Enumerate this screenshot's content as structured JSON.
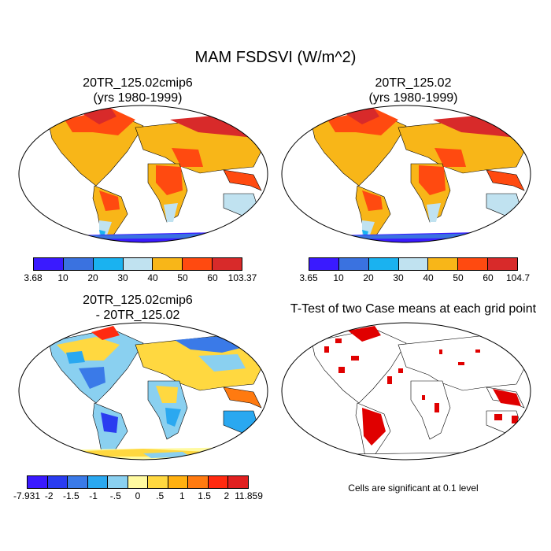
{
  "main_title": "MAM FSDSVI (W/m^2)",
  "panels": [
    {
      "title_line1": "20TR_125.02cmip6",
      "title_line2": "(yrs 1980-1999)"
    },
    {
      "title_line1": "20TR_125.02",
      "title_line2": "(yrs 1980-1999)"
    },
    {
      "title_line1": "20TR_125.02cmip6",
      "title_line2": "- 20TR_125.02"
    },
    {
      "title_line1": "T-Test of two Case means at each grid point",
      "title_line2": ""
    }
  ],
  "colorbar1": {
    "colors": [
      "#3a1aff",
      "#3a72e0",
      "#1ab2f0",
      "#c0e2f0",
      "#f8b618",
      "#ff4a10",
      "#d82a2a"
    ],
    "labels": [
      "3.68",
      "10",
      "20",
      "30",
      "40",
      "50",
      "60",
      "103.37"
    ]
  },
  "colorbar2": {
    "colors": [
      "#3a1aff",
      "#3a72e0",
      "#1ab2f0",
      "#c0e2f0",
      "#f8b618",
      "#ff4a10",
      "#d82a2a"
    ],
    "labels": [
      "3.65",
      "10",
      "20",
      "30",
      "40",
      "50",
      "60",
      "104.7"
    ]
  },
  "colorbar3": {
    "colors": [
      "#3a1aff",
      "#2a3cf0",
      "#3a7ae8",
      "#2aa8f0",
      "#8ad0f0",
      "#fffaa0",
      "#ffd840",
      "#ffb010",
      "#ff7a10",
      "#ff2a10",
      "#e02020"
    ],
    "labels": [
      "-7.931",
      "-2",
      "-1.5",
      "-1",
      "-.5",
      "0",
      ".5",
      "1",
      "1.5",
      "2",
      "11.859"
    ]
  },
  "note": "Cells are significant at 0.1 level",
  "colors": {
    "significant": "#e00000",
    "land_outline": "#000000",
    "ocean": "#ffffff"
  }
}
